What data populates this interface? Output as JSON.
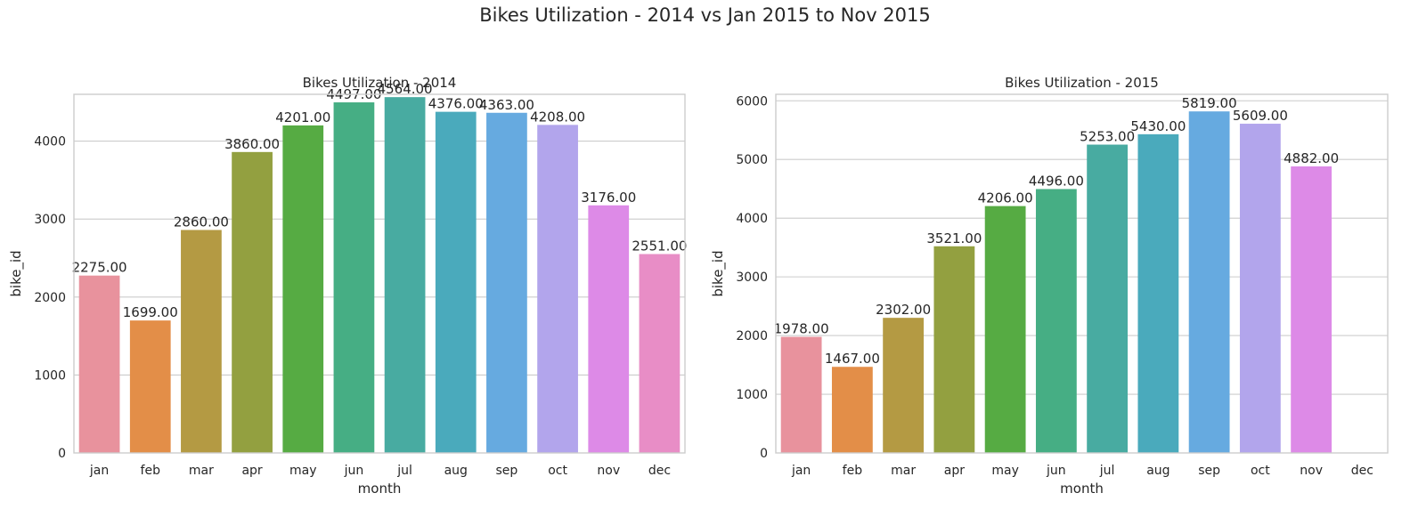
{
  "suptitle": "Bikes Utilization - 2014 vs Jan 2015 to Nov 2015",
  "chart_data": [
    {
      "type": "bar",
      "title": "Bikes Utilization - 2014",
      "xlabel": "month",
      "ylabel": "bike_id",
      "categories": [
        "jan",
        "feb",
        "mar",
        "apr",
        "may",
        "jun",
        "jul",
        "aug",
        "sep",
        "oct",
        "nov",
        "dec"
      ],
      "values": [
        2275,
        1699,
        2860,
        3860,
        4201,
        4497,
        4564,
        4376,
        4363,
        4208,
        3176,
        2551
      ],
      "data_labels": [
        "2275.00",
        "1699.00",
        "2860.00",
        "3860.00",
        "4201.00",
        "4497.00",
        "4564.00",
        "4376.00",
        "4363.00",
        "4208.00",
        "3176.00",
        "2551.00"
      ],
      "ylim": [
        0,
        4600
      ],
      "yticks": [
        0,
        1000,
        2000,
        3000,
        4000
      ],
      "grid": true
    },
    {
      "type": "bar",
      "title": "Bikes Utilization - 2015",
      "xlabel": "month",
      "ylabel": "bike_id",
      "categories": [
        "jan",
        "feb",
        "mar",
        "apr",
        "may",
        "jun",
        "jul",
        "aug",
        "sep",
        "oct",
        "nov",
        "dec"
      ],
      "values": [
        1978,
        1467,
        2302,
        3521,
        4206,
        4496,
        5253,
        5430,
        5819,
        5609,
        4882,
        null
      ],
      "data_labels": [
        "1978.00",
        "1467.00",
        "2302.00",
        "3521.00",
        "4206.00",
        "4496.00",
        "5253.00",
        "5430.00",
        "5819.00",
        "5609.00",
        "4882.00",
        ""
      ],
      "ylim": [
        0,
        6110
      ],
      "yticks": [
        0,
        1000,
        2000,
        3000,
        4000,
        5000,
        6000
      ],
      "grid": true
    }
  ],
  "colors": [
    "#e8929d",
    "#e38e48",
    "#b49a43",
    "#93a040",
    "#56ab43",
    "#46ae84",
    "#48aba1",
    "#4aaabc",
    "#66aae0",
    "#b2a5ec",
    "#dd8ae7",
    "#e88dc6"
  ]
}
